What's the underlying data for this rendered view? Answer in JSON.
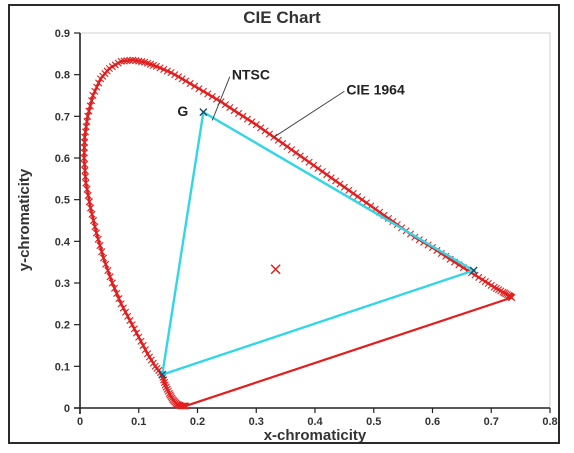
{
  "chart_data": {
    "type": "scatter",
    "title": "CIE Chart",
    "xlabel": "x-chromaticity",
    "ylabel": "y-chromaticity",
    "xlim": [
      0,
      0.8
    ],
    "ylim": [
      0,
      0.9
    ],
    "x_ticks": [
      "0",
      "0.1",
      "0.2",
      "0.3",
      "0.4",
      "0.5",
      "0.6",
      "0.7",
      "0.8"
    ],
    "y_ticks": [
      "0",
      "0.1",
      "0.2",
      "0.3",
      "0.4",
      "0.5",
      "0.6",
      "0.7",
      "0.8",
      "0.9"
    ],
    "grid": false,
    "legend": "none",
    "colors": {
      "locus": "#e02020",
      "ntsc": "#33d6e6",
      "vertex_marker": "#1a4a66"
    },
    "series": [
      {
        "name": "CIE 1964",
        "marker": "x",
        "points": [
          [
            0.18,
            0.005
          ],
          [
            0.172,
            0.005
          ],
          [
            0.165,
            0.009
          ],
          [
            0.158,
            0.02
          ],
          [
            0.152,
            0.035
          ],
          [
            0.145,
            0.055
          ],
          [
            0.14,
            0.08
          ],
          [
            0.128,
            0.1
          ],
          [
            0.115,
            0.13
          ],
          [
            0.1,
            0.17
          ],
          [
            0.085,
            0.21
          ],
          [
            0.07,
            0.25
          ],
          [
            0.055,
            0.3
          ],
          [
            0.04,
            0.36
          ],
          [
            0.028,
            0.42
          ],
          [
            0.018,
            0.48
          ],
          [
            0.01,
            0.54
          ],
          [
            0.007,
            0.6
          ],
          [
            0.008,
            0.65
          ],
          [
            0.013,
            0.7
          ],
          [
            0.022,
            0.75
          ],
          [
            0.035,
            0.79
          ],
          [
            0.05,
            0.815
          ],
          [
            0.07,
            0.832
          ],
          [
            0.09,
            0.835
          ],
          [
            0.11,
            0.83
          ],
          [
            0.13,
            0.82
          ],
          [
            0.155,
            0.805
          ],
          [
            0.18,
            0.785
          ],
          [
            0.21,
            0.76
          ],
          [
            0.24,
            0.735
          ],
          [
            0.27,
            0.707
          ],
          [
            0.3,
            0.68
          ],
          [
            0.33,
            0.65
          ],
          [
            0.36,
            0.62
          ],
          [
            0.39,
            0.59
          ],
          [
            0.42,
            0.56
          ],
          [
            0.45,
            0.53
          ],
          [
            0.48,
            0.5
          ],
          [
            0.51,
            0.47
          ],
          [
            0.54,
            0.44
          ],
          [
            0.57,
            0.41
          ],
          [
            0.6,
            0.385
          ],
          [
            0.63,
            0.357
          ],
          [
            0.66,
            0.33
          ],
          [
            0.685,
            0.308
          ],
          [
            0.705,
            0.29
          ],
          [
            0.72,
            0.278
          ],
          [
            0.73,
            0.27
          ],
          [
            0.735,
            0.265
          ]
        ],
        "closing_line": [
          [
            0.735,
            0.265
          ],
          [
            0.18,
            0.005
          ]
        ]
      },
      {
        "name": "NTSC",
        "type": "polygon",
        "points": [
          [
            0.21,
            0.71
          ],
          [
            0.67,
            0.33
          ],
          [
            0.14,
            0.08
          ]
        ]
      }
    ],
    "white_point": [
      0.333,
      0.333
    ],
    "annotations": [
      {
        "text": "G",
        "x": 0.21,
        "y": 0.71
      },
      {
        "text": "NTSC",
        "x": 0.255,
        "y": 0.8,
        "target": [
          0.225,
          0.69
        ]
      },
      {
        "text": "CIE 1964",
        "x": 0.45,
        "y": 0.765,
        "target": [
          0.33,
          0.65
        ]
      }
    ]
  }
}
